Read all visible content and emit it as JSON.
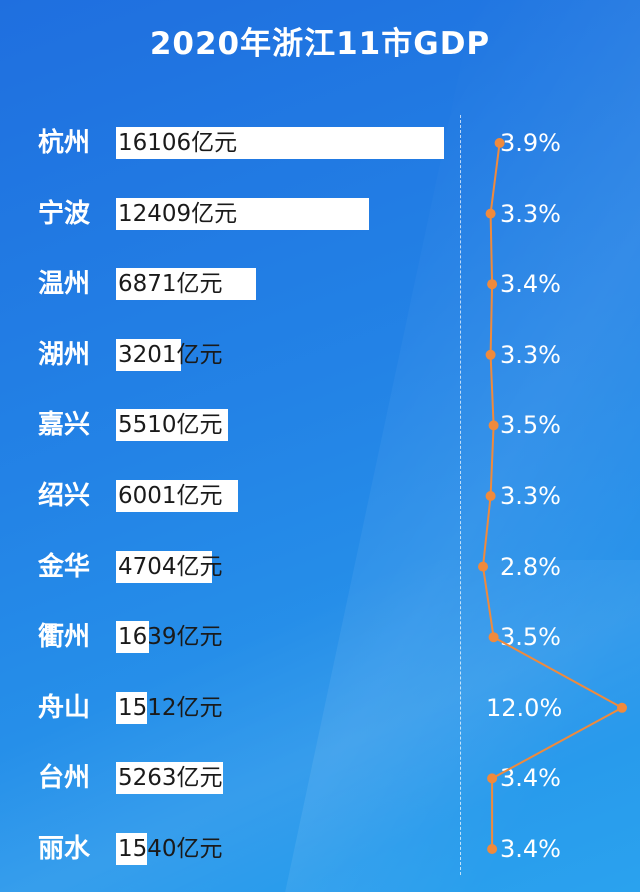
{
  "title": "2020年浙江11市GDP",
  "colors": {
    "background": "#1f7ae4",
    "bar": "#ffffff",
    "line": "#f08a3c"
  },
  "chart_data": {
    "type": "bar",
    "title": "2020年浙江11市GDP",
    "categories": [
      "杭州",
      "宁波",
      "温州",
      "湖州",
      "嘉兴",
      "绍兴",
      "金华",
      "衢州",
      "舟山",
      "台州",
      "丽水"
    ],
    "series": [
      {
        "values": [
          16106,
          12409,
          6871,
          3201,
          5510,
          6001,
          4704,
          1639,
          1512,
          5263,
          1540
        ],
        "labels": [
          "16106亿元",
          "12409亿元",
          "6871亿元",
          "3201亿元",
          "5510亿元",
          "6001亿元",
          "4704亿元",
          "1639亿元",
          "1512亿元",
          "5263亿元",
          "1540亿元"
        ]
      },
      {
        "type": "line",
        "values": [
          3.9,
          3.3,
          3.4,
          3.3,
          3.5,
          3.3,
          2.8,
          3.5,
          12.0,
          3.4,
          3.4
        ],
        "labels": [
          "3.9%",
          "3.3%",
          "3.4%",
          "3.3%",
          "3.5%",
          "3.3%",
          "2.8%",
          "3.5%",
          "12.0%",
          "3.4%",
          "3.4%"
        ]
      }
    ],
    "unit": "亿元"
  }
}
